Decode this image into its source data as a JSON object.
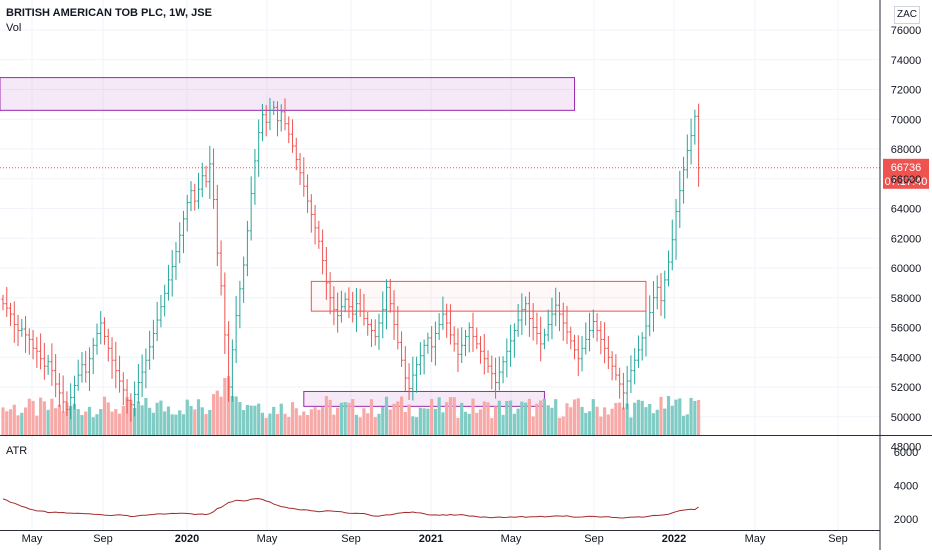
{
  "header": {
    "title": "BRITISH AMERICAN TOB PLC, 1W, JSE",
    "volume_label": "Vol",
    "currency": "ZAC"
  },
  "atr_label": "ATR",
  "last_price": {
    "value": 66736,
    "value_label": "66736",
    "countdown": "07:17:40",
    "color": "#ef5350"
  },
  "colors": {
    "up": "#26a69a",
    "down": "#ef5350",
    "vol_up": "#80cbc4",
    "vol_down": "#f7a9a7",
    "atr_line": "#a52a2a",
    "zone_purple": "#9c27b0",
    "zone_red": "#ef5350"
  },
  "chart_data": [
    {
      "type": "candlestick",
      "title": "",
      "x_tick_labels": [
        "May",
        "Sep",
        "2020",
        "May",
        "Sep",
        "2021",
        "May",
        "Sep",
        "2022",
        "May",
        "Sep"
      ],
      "x_tick_bold": [
        false,
        false,
        true,
        false,
        false,
        true,
        false,
        false,
        true,
        false,
        false
      ],
      "y_ticks": [
        48000,
        50000,
        52000,
        54000,
        56000,
        58000,
        60000,
        62000,
        64000,
        66000,
        68000,
        70000,
        72000,
        74000,
        76000
      ],
      "y_tick_labels": [
        "48000",
        "50000",
        "52000",
        "54000",
        "56000",
        "58000",
        "60000",
        "62000",
        "64000",
        "66000",
        "68000",
        "70000",
        "72000",
        "74000",
        "76000"
      ],
      "ylim": [
        46800,
        76200
      ],
      "zones": [
        {
          "name": "resistance",
          "color": "purple",
          "start_week": -5,
          "end_week": 152,
          "low": 70600,
          "high": 72800
        },
        {
          "name": "range-top",
          "color": "red",
          "start_week": 82,
          "end_week": 171,
          "low": 57100,
          "high": 59100
        },
        {
          "name": "support",
          "color": "purple",
          "start_week": 80,
          "end_week": 144,
          "low": 50700,
          "high": 51700
        }
      ],
      "closes": [
        57600,
        57300,
        56900,
        56200,
        55800,
        55900,
        55500,
        55200,
        54600,
        54400,
        53900,
        53400,
        53700,
        53100,
        52200,
        51600,
        51000,
        50500,
        51300,
        52100,
        52800,
        53500,
        53000,
        53900,
        54800,
        55600,
        56300,
        55400,
        54600,
        53800,
        53100,
        52400,
        51800,
        51100,
        50800,
        51500,
        52300,
        53000,
        53800,
        54700,
        55600,
        56500,
        57400,
        58300,
        59200,
        60100,
        61100,
        62200,
        63300,
        64400,
        65200,
        64500,
        65300,
        66200,
        65800,
        67000,
        64600,
        61000,
        58800,
        55500,
        52000,
        54500,
        56800,
        58600,
        60200,
        62500,
        65000,
        67200,
        69100,
        70300,
        69800,
        70600,
        70800,
        69900,
        70500,
        69700,
        69000,
        68200,
        67300,
        66400,
        65500,
        64500,
        63600,
        62700,
        61800,
        60500,
        59000,
        58000,
        57200,
        56800,
        57400,
        57900,
        57400,
        56900,
        57600,
        57100,
        56600,
        56200,
        55800,
        55400,
        56300,
        57200,
        58700,
        57600,
        56200,
        55000,
        53800,
        52600,
        51900,
        52800,
        53500,
        54100,
        54800,
        55300,
        54700,
        55600,
        56200,
        56900,
        56300,
        55500,
        54900,
        54200,
        54800,
        55400,
        56000,
        55400,
        54900,
        54400,
        53900,
        53400,
        52900,
        52300,
        53000,
        53700,
        54400,
        55100,
        55800,
        56500,
        57200,
        57600,
        56600,
        56000,
        55600,
        54900,
        55500,
        56200,
        56900,
        57500,
        56900,
        56300,
        55700,
        55100,
        54500,
        53900,
        54600,
        55200,
        55800,
        56400,
        55800,
        55200,
        54600,
        54000,
        53400,
        52800,
        52200,
        51600,
        52400,
        53100,
        53800,
        54500,
        55300,
        56100,
        57000,
        58000,
        58700,
        57800,
        59200,
        60400,
        61900,
        63800,
        65200,
        66600,
        67900,
        68900,
        70200,
        66736
      ],
      "volume_ylim": [
        0,
        10000
      ],
      "atr": {
        "ylim": [
          1800,
          6800
        ],
        "y_ticks": [
          2000,
          4000,
          6000
        ],
        "y_tick_labels": [
          "2000",
          "4000",
          "6000"
        ]
      }
    }
  ]
}
